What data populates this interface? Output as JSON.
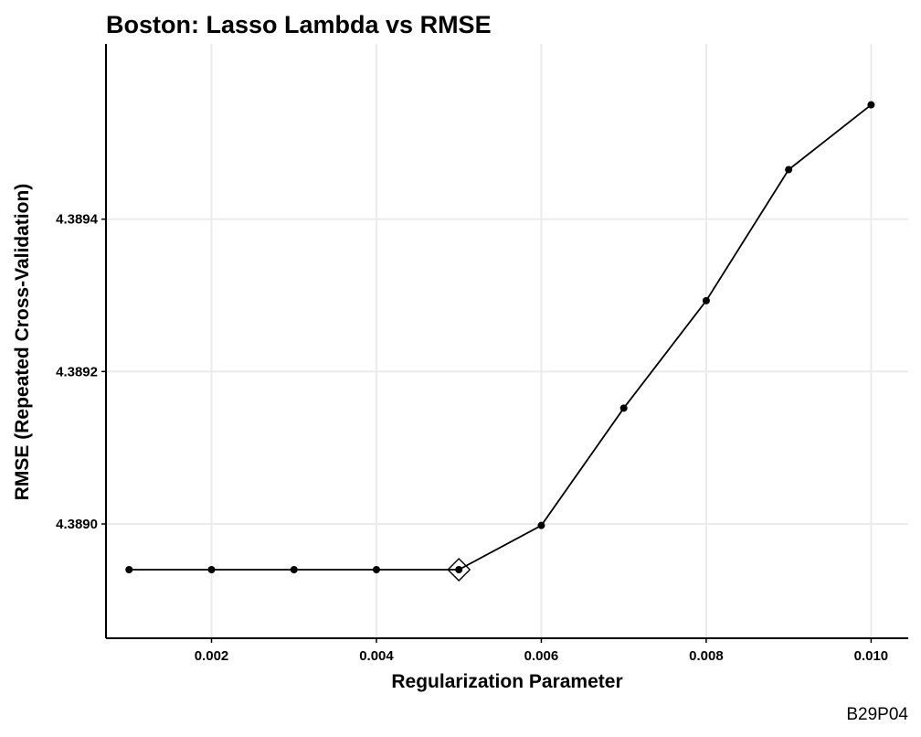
{
  "chart_data": {
    "type": "line",
    "title": "Boston: Lasso Lambda vs RMSE",
    "xlabel": "Regularization Parameter",
    "ylabel": "RMSE (Repeated Cross-Validation)",
    "caption": "B29P04",
    "x": [
      0.001,
      0.002,
      0.003,
      0.004,
      0.005,
      0.006,
      0.007,
      0.008,
      0.009,
      0.01
    ],
    "series": [
      {
        "values": [
          4.38894,
          4.38894,
          4.38894,
          4.38894,
          4.38894,
          4.388998,
          4.389152,
          4.389293,
          4.389465,
          4.38955
        ]
      }
    ],
    "highlight": {
      "x": 0.005,
      "y": 4.38894,
      "marker": "diamond-open"
    },
    "xlim": [
      0.00072,
      0.01045
    ],
    "ylim": [
      4.38885,
      4.38963
    ],
    "xticks": [
      0.002,
      0.004,
      0.006,
      0.008,
      0.01
    ],
    "xtick_labels": [
      "0.002",
      "0.004",
      "0.006",
      "0.008",
      "0.010"
    ],
    "yticks": [
      4.389,
      4.3892,
      4.3894
    ],
    "ytick_labels": [
      "4.3890",
      "4.3892",
      "4.3894"
    ],
    "grid": true,
    "legend": "none"
  }
}
